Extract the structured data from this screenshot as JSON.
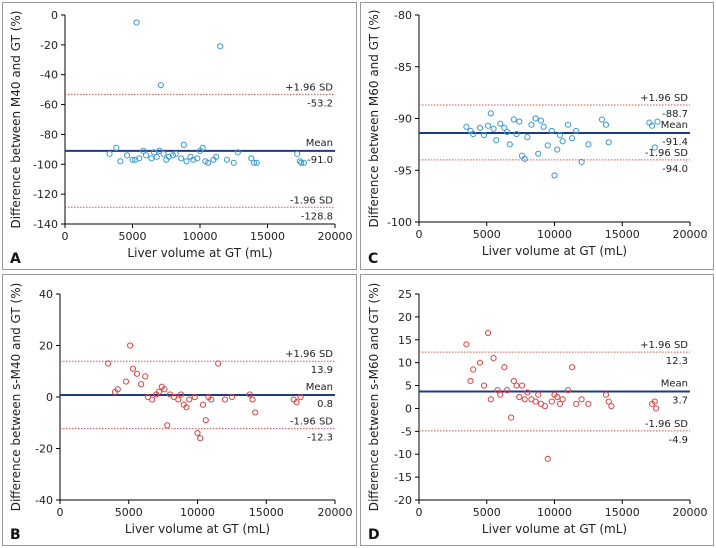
{
  "chart_data": [
    {
      "type": "scatter",
      "panel_label": "A",
      "xlabel": "Liver volume at GT (mL)",
      "ylabel": "Difference between M40 and GT (%)",
      "xlim": [
        0,
        20000
      ],
      "ylim": [
        -140,
        0
      ],
      "xticks": [
        0,
        5000,
        10000,
        15000,
        20000
      ],
      "yticks": [
        -140,
        -120,
        -100,
        -80,
        -60,
        -40,
        -20,
        0
      ],
      "mean": -91.0,
      "upper": -53.2,
      "lower": -128.8,
      "mean_label": "Mean",
      "mean_value": "-91.0",
      "upper_label": "+1.96 SD",
      "upper_value": "-53.2",
      "lower_label": "-1.96 SD",
      "lower_value": "-128.8",
      "marker_color": "#3a9ad9",
      "points": [
        [
          3300,
          -93
        ],
        [
          3800,
          -89
        ],
        [
          4100,
          -98
        ],
        [
          4600,
          -94
        ],
        [
          5000,
          -97
        ],
        [
          5200,
          -97
        ],
        [
          5300,
          -5
        ],
        [
          5500,
          -96
        ],
        [
          5800,
          -91
        ],
        [
          6000,
          -94
        ],
        [
          6400,
          -96
        ],
        [
          6600,
          -92
        ],
        [
          6800,
          -95
        ],
        [
          7000,
          -91
        ],
        [
          7100,
          -47
        ],
        [
          7300,
          -93
        ],
        [
          7500,
          -97
        ],
        [
          7700,
          -95
        ],
        [
          8000,
          -94
        ],
        [
          8200,
          -93
        ],
        [
          8600,
          -96
        ],
        [
          8800,
          -87
        ],
        [
          9000,
          -98
        ],
        [
          9300,
          -95
        ],
        [
          9500,
          -97
        ],
        [
          9800,
          -96
        ],
        [
          10000,
          -91
        ],
        [
          10200,
          -89
        ],
        [
          10400,
          -98
        ],
        [
          10600,
          -99
        ],
        [
          11000,
          -97
        ],
        [
          11200,
          -95
        ],
        [
          11500,
          -21
        ],
        [
          12000,
          -97
        ],
        [
          12500,
          -99
        ],
        [
          12800,
          -92
        ],
        [
          13800,
          -96
        ],
        [
          14000,
          -99
        ],
        [
          14200,
          -99
        ],
        [
          17200,
          -93
        ],
        [
          17400,
          -98
        ],
        [
          17500,
          -99
        ],
        [
          17700,
          -99
        ]
      ]
    },
    {
      "type": "scatter",
      "panel_label": "C",
      "xlabel": "Liver volume at GT (mL)",
      "ylabel": "Difference between M60 and GT (%)",
      "xlim": [
        0,
        20000
      ],
      "ylim": [
        -100,
        -80
      ],
      "xticks": [
        0,
        5000,
        10000,
        15000,
        20000
      ],
      "yticks": [
        -100,
        -95,
        -90,
        -85,
        -80
      ],
      "mean": -91.4,
      "upper": -88.7,
      "lower": -94.0,
      "mean_label": "Mean",
      "mean_value": "-91.4",
      "upper_label": "+1.96 SD",
      "upper_value": "-88.7",
      "lower_label": "-1.96 SD",
      "lower_value": "-94.0",
      "marker_color": "#3a9ad9",
      "points": [
        [
          3500,
          -90.8
        ],
        [
          3800,
          -91.2
        ],
        [
          4000,
          -91.5
        ],
        [
          4500,
          -90.9
        ],
        [
          4800,
          -91.6
        ],
        [
          5100,
          -90.7
        ],
        [
          5300,
          -89.5
        ],
        [
          5500,
          -91.0
        ],
        [
          5700,
          -92.1
        ],
        [
          6000,
          -90.5
        ],
        [
          6300,
          -90.9
        ],
        [
          6500,
          -91.3
        ],
        [
          6700,
          -92.5
        ],
        [
          7000,
          -90.1
        ],
        [
          7200,
          -91.5
        ],
        [
          7400,
          -90.3
        ],
        [
          7600,
          -93.6
        ],
        [
          7800,
          -93.9
        ],
        [
          8000,
          -91.8
        ],
        [
          8300,
          -90.6
        ],
        [
          8600,
          -90.0
        ],
        [
          8800,
          -93.4
        ],
        [
          9000,
          -90.2
        ],
        [
          9200,
          -90.8
        ],
        [
          9500,
          -92.6
        ],
        [
          9800,
          -91.2
        ],
        [
          10000,
          -95.5
        ],
        [
          10200,
          -93.0
        ],
        [
          10400,
          -91.6
        ],
        [
          10600,
          -92.2
        ],
        [
          11000,
          -90.6
        ],
        [
          11300,
          -91.9
        ],
        [
          11600,
          -91.2
        ],
        [
          12000,
          -94.2
        ],
        [
          12500,
          -92.5
        ],
        [
          13500,
          -90.1
        ],
        [
          13800,
          -90.6
        ],
        [
          14000,
          -92.3
        ],
        [
          17000,
          -90.4
        ],
        [
          17200,
          -90.7
        ],
        [
          17400,
          -92.8
        ],
        [
          17600,
          -90.3
        ]
      ]
    },
    {
      "type": "scatter",
      "panel_label": "B",
      "xlabel": "Liver volume at GT (mL)",
      "ylabel": "Difference between s-M40 and GT (%)",
      "xlim": [
        0,
        20000
      ],
      "ylim": [
        -40,
        40
      ],
      "xticks": [
        0,
        5000,
        10000,
        15000,
        20000
      ],
      "yticks": [
        -40,
        -20,
        0,
        20,
        40
      ],
      "mean": 0.8,
      "upper": 13.9,
      "lower": -12.3,
      "mean_label": "Mean",
      "mean_value": "0.8",
      "upper_label": "+1.96 SD",
      "upper_value": "13.9",
      "lower_label": "-1.96 SD",
      "lower_value": "-12.3",
      "marker_color": "#e04444",
      "points": [
        [
          3500,
          13
        ],
        [
          4000,
          2
        ],
        [
          4200,
          3
        ],
        [
          4800,
          6
        ],
        [
          5100,
          20
        ],
        [
          5300,
          11
        ],
        [
          5600,
          9
        ],
        [
          5900,
          5
        ],
        [
          6200,
          8
        ],
        [
          6400,
          0
        ],
        [
          6700,
          -1
        ],
        [
          7000,
          1
        ],
        [
          7200,
          2
        ],
        [
          7400,
          4
        ],
        [
          7600,
          3
        ],
        [
          7800,
          -11
        ],
        [
          8000,
          1
        ],
        [
          8300,
          0
        ],
        [
          8600,
          -1
        ],
        [
          8800,
          1
        ],
        [
          9000,
          -3
        ],
        [
          9200,
          -4
        ],
        [
          9400,
          -1
        ],
        [
          9800,
          0
        ],
        [
          10000,
          -14
        ],
        [
          10200,
          -16
        ],
        [
          10400,
          -3
        ],
        [
          10600,
          -9
        ],
        [
          10800,
          0
        ],
        [
          11000,
          -1
        ],
        [
          11500,
          13
        ],
        [
          12000,
          -1
        ],
        [
          12500,
          0
        ],
        [
          13800,
          1
        ],
        [
          14000,
          -1
        ],
        [
          14200,
          -6
        ],
        [
          17000,
          -1
        ],
        [
          17200,
          -2
        ],
        [
          17500,
          0
        ]
      ]
    },
    {
      "type": "scatter",
      "panel_label": "D",
      "xlabel": "Liver volume at GT (mL)",
      "ylabel": "Difference between s-M60 and GT (%)",
      "xlim": [
        0,
        20000
      ],
      "ylim": [
        -20,
        25
      ],
      "xticks": [
        0,
        5000,
        10000,
        15000,
        20000
      ],
      "yticks": [
        -20,
        -15,
        -10,
        -5,
        0,
        5,
        10,
        15,
        20,
        25
      ],
      "mean": 3.7,
      "upper": 12.3,
      "lower": -4.9,
      "mean_label": "Mean",
      "mean_value": "3.7",
      "upper_label": "+1.96 SD",
      "upper_value": "12.3",
      "lower_label": "-1.96 SD",
      "lower_value": "-4.9",
      "marker_color": "#e04444",
      "points": [
        [
          3500,
          14
        ],
        [
          3800,
          6
        ],
        [
          4000,
          8.5
        ],
        [
          4500,
          10
        ],
        [
          4800,
          5
        ],
        [
          5100,
          16.5
        ],
        [
          5300,
          2
        ],
        [
          5500,
          11
        ],
        [
          5800,
          4
        ],
        [
          6000,
          3
        ],
        [
          6300,
          9
        ],
        [
          6500,
          4
        ],
        [
          6800,
          -2
        ],
        [
          7000,
          6
        ],
        [
          7200,
          5
        ],
        [
          7400,
          2.5
        ],
        [
          7600,
          5
        ],
        [
          7800,
          2
        ],
        [
          8000,
          3.5
        ],
        [
          8300,
          2
        ],
        [
          8600,
          1.5
        ],
        [
          8800,
          3
        ],
        [
          9000,
          1
        ],
        [
          9300,
          0.5
        ],
        [
          9500,
          -11
        ],
        [
          9800,
          1.5
        ],
        [
          10000,
          3
        ],
        [
          10200,
          2.5
        ],
        [
          10400,
          1
        ],
        [
          10600,
          2
        ],
        [
          11000,
          4
        ],
        [
          11300,
          9
        ],
        [
          11600,
          1
        ],
        [
          12000,
          2
        ],
        [
          12500,
          1
        ],
        [
          13800,
          3
        ],
        [
          14000,
          1.5
        ],
        [
          14200,
          0.5
        ],
        [
          17200,
          1
        ],
        [
          17400,
          1.5
        ],
        [
          17500,
          0
        ]
      ]
    }
  ]
}
